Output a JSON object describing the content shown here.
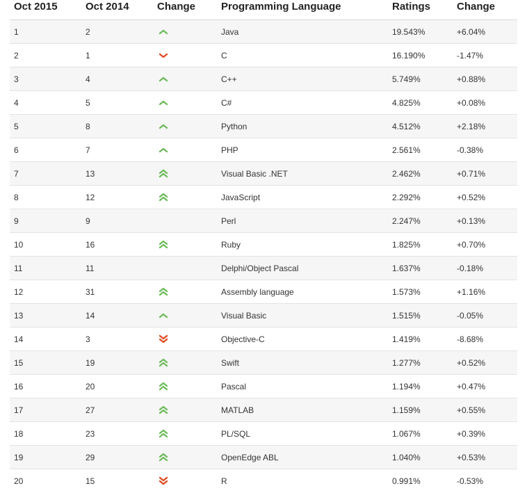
{
  "colors": {
    "up": "#6dbb5a",
    "down": "#e04a1f",
    "row_odd": "#f6f6f6",
    "row_even": "#ffffff"
  },
  "headers": [
    "Oct 2015",
    "Oct 2014",
    "Change",
    "Programming Language",
    "Ratings",
    "Change"
  ],
  "rows": [
    {
      "oct2015": "1",
      "oct2014": "2",
      "trend": "up",
      "language": "Java",
      "rating": "19.543%",
      "change": "+6.04%"
    },
    {
      "oct2015": "2",
      "oct2014": "1",
      "trend": "down",
      "language": "C",
      "rating": "16.190%",
      "change": "-1.47%"
    },
    {
      "oct2015": "3",
      "oct2014": "4",
      "trend": "up",
      "language": "C++",
      "rating": "5.749%",
      "change": "+0.88%"
    },
    {
      "oct2015": "4",
      "oct2014": "5",
      "trend": "up",
      "language": "C#",
      "rating": "4.825%",
      "change": "+0.08%"
    },
    {
      "oct2015": "5",
      "oct2014": "8",
      "trend": "up",
      "language": "Python",
      "rating": "4.512%",
      "change": "+2.18%"
    },
    {
      "oct2015": "6",
      "oct2014": "7",
      "trend": "up",
      "language": "PHP",
      "rating": "2.561%",
      "change": "-0.38%"
    },
    {
      "oct2015": "7",
      "oct2014": "13",
      "trend": "up-double",
      "language": "Visual Basic .NET",
      "rating": "2.462%",
      "change": "+0.71%"
    },
    {
      "oct2015": "8",
      "oct2014": "12",
      "trend": "up-double",
      "language": "JavaScript",
      "rating": "2.292%",
      "change": "+0.52%"
    },
    {
      "oct2015": "9",
      "oct2014": "9",
      "trend": "none",
      "language": "Perl",
      "rating": "2.247%",
      "change": "+0.13%"
    },
    {
      "oct2015": "10",
      "oct2014": "16",
      "trend": "up-double",
      "language": "Ruby",
      "rating": "1.825%",
      "change": "+0.70%"
    },
    {
      "oct2015": "11",
      "oct2014": "11",
      "trend": "none",
      "language": "Delphi/Object Pascal",
      "rating": "1.637%",
      "change": "-0.18%"
    },
    {
      "oct2015": "12",
      "oct2014": "31",
      "trend": "up-double",
      "language": "Assembly language",
      "rating": "1.573%",
      "change": "+1.16%"
    },
    {
      "oct2015": "13",
      "oct2014": "14",
      "trend": "up",
      "language": "Visual Basic",
      "rating": "1.515%",
      "change": "-0.05%"
    },
    {
      "oct2015": "14",
      "oct2014": "3",
      "trend": "down-double",
      "language": "Objective-C",
      "rating": "1.419%",
      "change": "-8.68%"
    },
    {
      "oct2015": "15",
      "oct2014": "19",
      "trend": "up-double",
      "language": "Swift",
      "rating": "1.277%",
      "change": "+0.52%"
    },
    {
      "oct2015": "16",
      "oct2014": "20",
      "trend": "up-double",
      "language": "Pascal",
      "rating": "1.194%",
      "change": "+0.47%"
    },
    {
      "oct2015": "17",
      "oct2014": "27",
      "trend": "up-double",
      "language": "MATLAB",
      "rating": "1.159%",
      "change": "+0.55%"
    },
    {
      "oct2015": "18",
      "oct2014": "23",
      "trend": "up-double",
      "language": "PL/SQL",
      "rating": "1.067%",
      "change": "+0.39%"
    },
    {
      "oct2015": "19",
      "oct2014": "29",
      "trend": "up-double",
      "language": "OpenEdge ABL",
      "rating": "1.040%",
      "change": "+0.53%"
    },
    {
      "oct2015": "20",
      "oct2014": "15",
      "trend": "down-double",
      "language": "R",
      "rating": "0.991%",
      "change": "-0.53%"
    }
  ]
}
